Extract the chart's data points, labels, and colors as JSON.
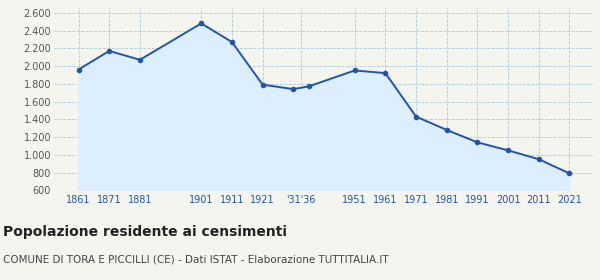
{
  "years": [
    1861,
    1871,
    1881,
    1901,
    1911,
    1921,
    1931,
    1936,
    1951,
    1961,
    1971,
    1981,
    1991,
    2001,
    2011,
    2021
  ],
  "population": [
    1961,
    2171,
    2071,
    2481,
    2271,
    1791,
    1741,
    1771,
    1951,
    1921,
    1431,
    1281,
    1141,
    1051,
    951,
    791
  ],
  "ylim": [
    600,
    2650
  ],
  "yticks": [
    600,
    800,
    1000,
    1200,
    1400,
    1600,
    1800,
    2000,
    2200,
    2400,
    2600
  ],
  "tick_positions": [
    1861,
    1871,
    1881,
    1901,
    1911,
    1921,
    1933.5,
    1951,
    1961,
    1971,
    1981,
    1991,
    2001,
    2011,
    2021
  ],
  "tick_labels": [
    "1861",
    "1871",
    "1881",
    "1901",
    "1911",
    "1921",
    "’31″36",
    "1951",
    "1961",
    "1971",
    "1981",
    "1991",
    "2001",
    "2011",
    "2021"
  ],
  "xlim_left": 1853,
  "xlim_right": 2029,
  "line_color": "#2255aa",
  "fill_color": "#ddeeff",
  "marker_color": "#2255aa",
  "grid_color": "#aaccdd",
  "bg_color": "#f5f5f0",
  "title": "Popolazione residente ai censimenti",
  "subtitle": "COMUNE DI TORA E PICCILLI (CE) - Dati ISTAT - Elaborazione TUTTITALIA.IT",
  "title_fontsize": 10,
  "subtitle_fontsize": 7.5,
  "tick_label_color": "#2255aa",
  "ytick_label_color": "#555555"
}
